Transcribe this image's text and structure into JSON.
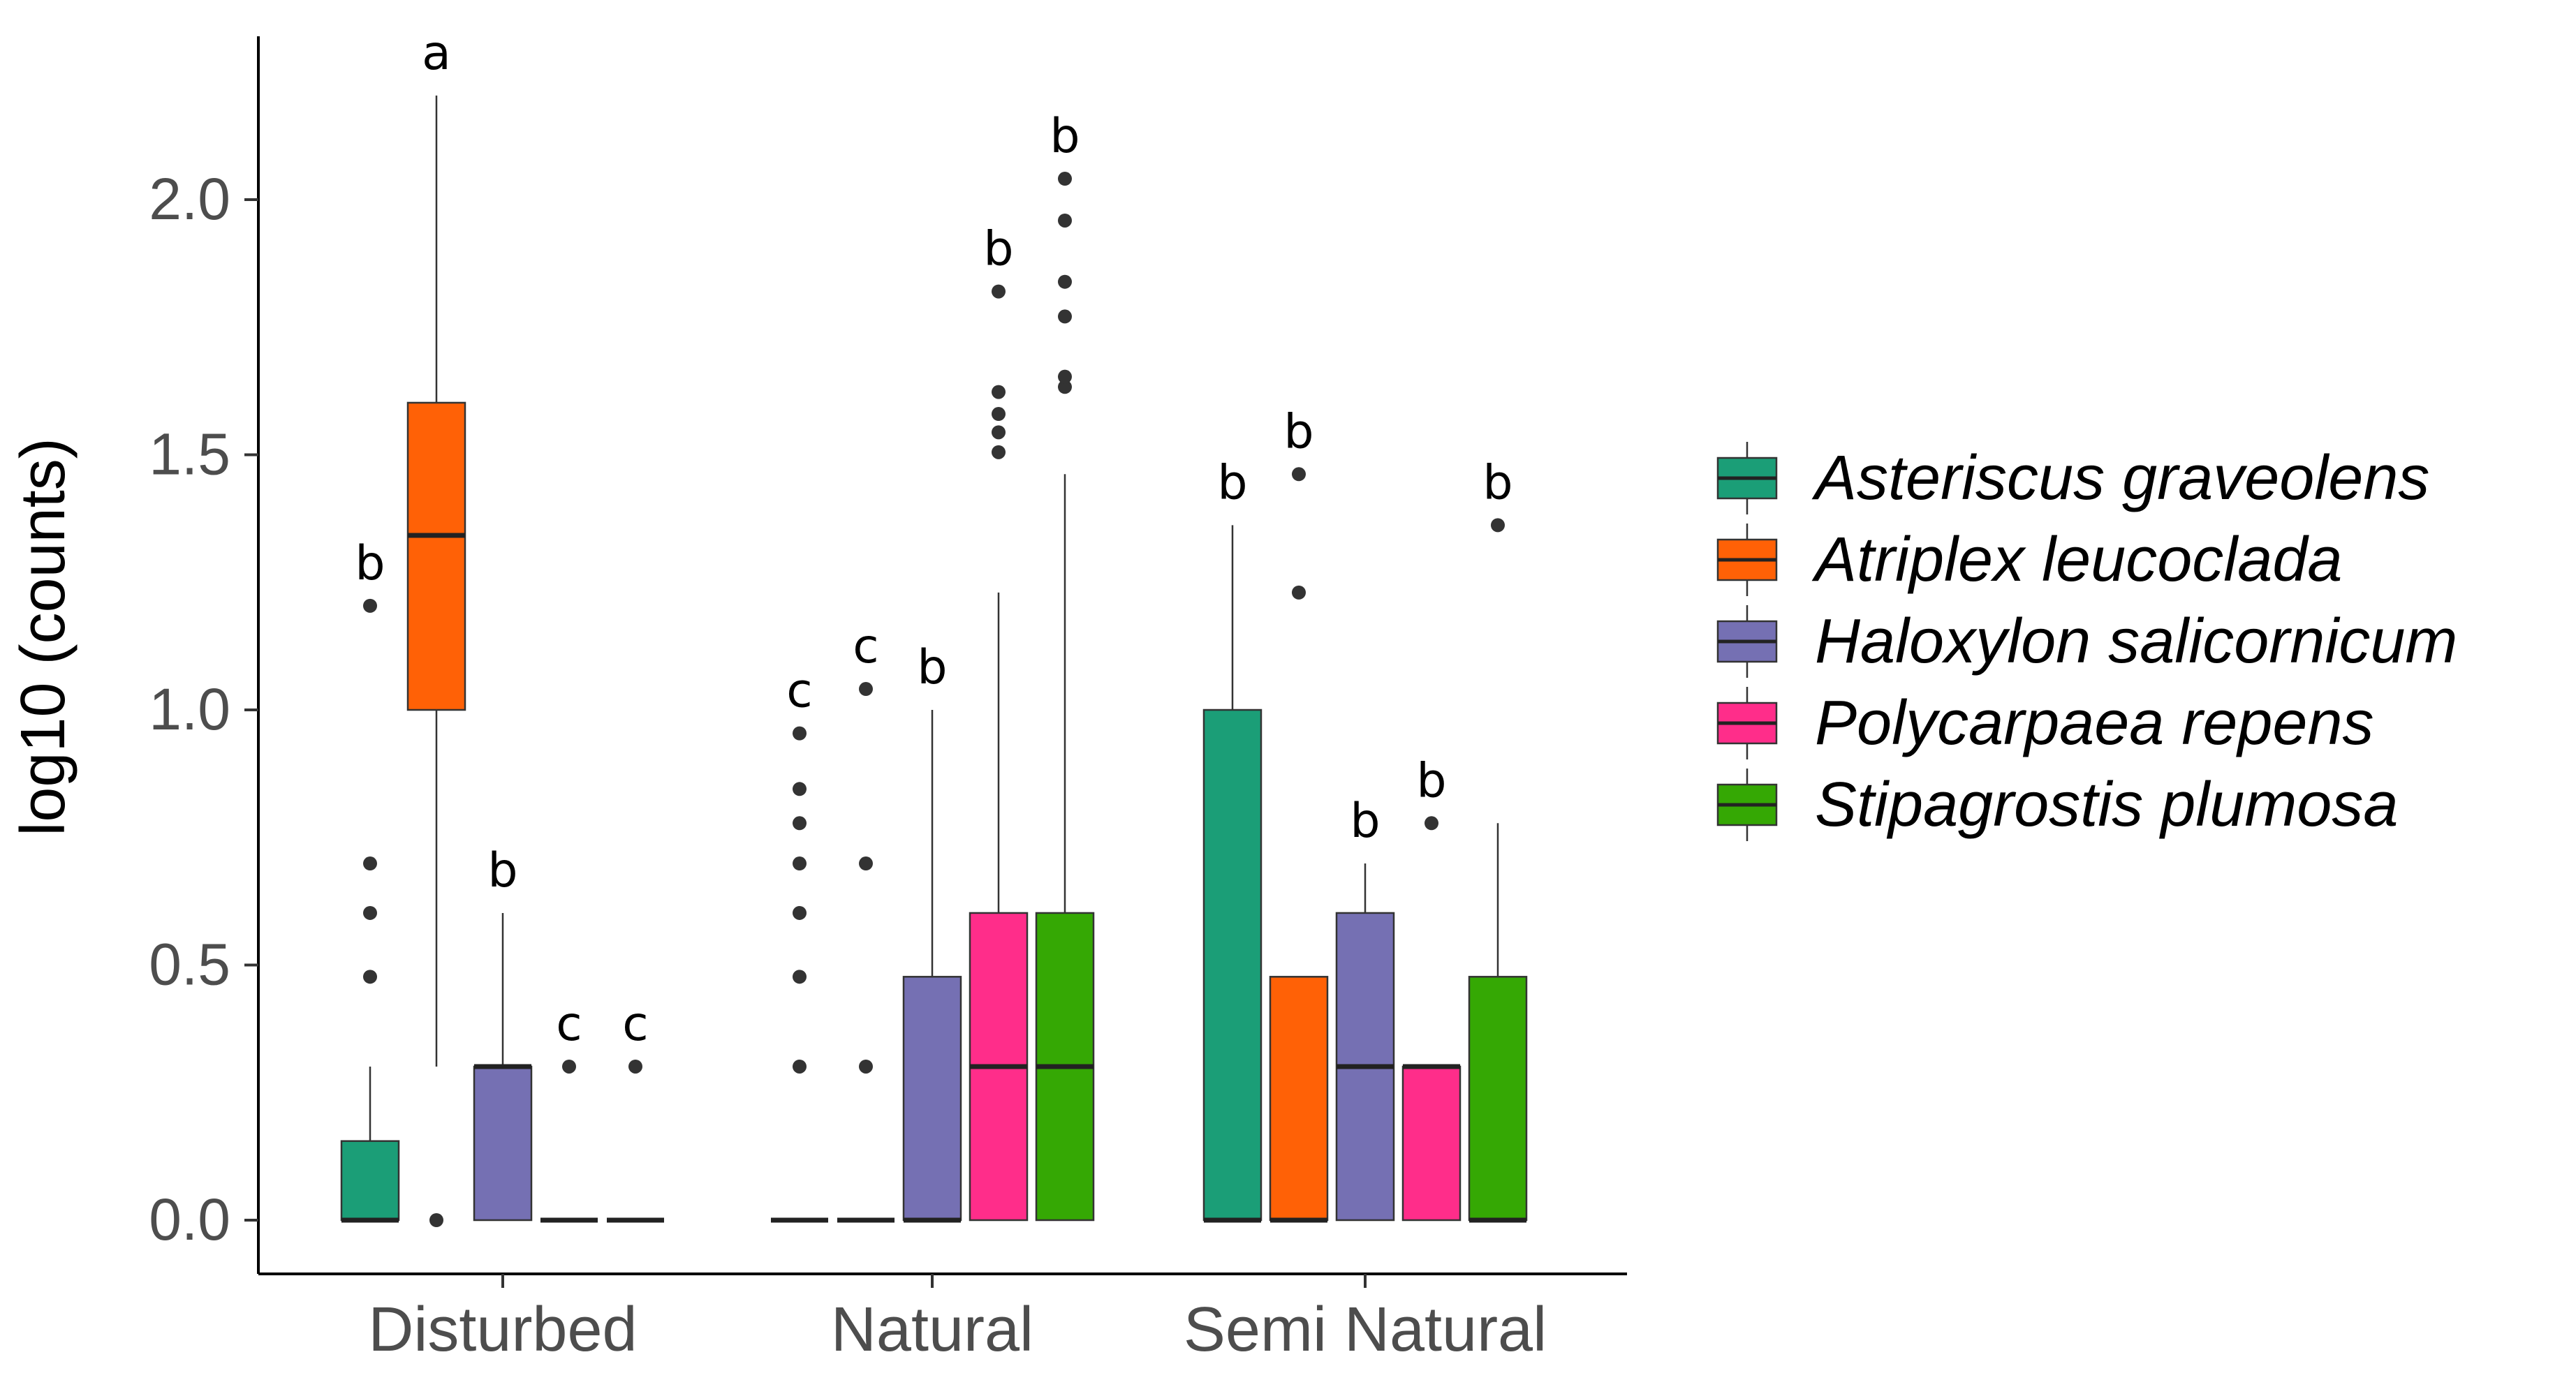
{
  "chart_data": {
    "type": "boxplot",
    "xlabel": "",
    "ylabel": "log10 (counts)",
    "ylim": [
      -0.1,
      2.3
    ],
    "yticks": [
      0.0,
      0.5,
      1.0,
      1.5,
      2.0
    ],
    "ytick_labels": [
      "0.0",
      "0.5",
      "1.0",
      "1.5",
      "2.0"
    ],
    "categories": [
      "Disturbed",
      "Natural",
      "Semi Natural"
    ],
    "legend": {
      "position": "right"
    },
    "series": [
      {
        "name": "Asteriscus graveolens",
        "color": "#1b9e77",
        "boxes": [
          {
            "category": "Disturbed",
            "q1": 0.0,
            "median": 0.0,
            "q3": 0.155,
            "whisker_low": 0.0,
            "whisker_high": 0.301,
            "outliers": [
              0.477,
              0.602,
              0.699,
              1.204
            ],
            "letter": "b"
          },
          {
            "category": "Natural",
            "q1": 0.0,
            "median": 0.0,
            "q3": 0.0,
            "whisker_low": 0.0,
            "whisker_high": 0.0,
            "outliers": [
              0.301,
              0.477,
              0.602,
              0.699,
              0.778,
              0.845,
              0.954
            ],
            "letter": "c"
          },
          {
            "category": "Semi Natural",
            "q1": 0.0,
            "median": 0.0,
            "q3": 1.0,
            "whisker_low": 0.0,
            "whisker_high": 1.362,
            "outliers": [],
            "letter": "b"
          }
        ]
      },
      {
        "name": "Atriplex leucoclada",
        "color": "#ff6106",
        "boxes": [
          {
            "category": "Disturbed",
            "q1": 1.0,
            "median": 1.342,
            "q3": 1.602,
            "whisker_low": 0.301,
            "whisker_high": 2.204,
            "outliers": [
              0.0
            ],
            "letter": "a"
          },
          {
            "category": "Natural",
            "q1": 0.0,
            "median": 0.0,
            "q3": 0.0,
            "whisker_low": 0.0,
            "whisker_high": 0.0,
            "outliers": [
              0.301,
              0.699,
              1.041
            ],
            "letter": "c"
          },
          {
            "category": "Semi Natural",
            "q1": 0.0,
            "median": 0.0,
            "q3": 0.477,
            "whisker_low": 0.0,
            "whisker_high": 0.477,
            "outliers": [
              1.23,
              1.462
            ],
            "letter": "b"
          }
        ]
      },
      {
        "name": "Haloxylon salicornicum",
        "color": "#7570b3",
        "boxes": [
          {
            "category": "Disturbed",
            "q1": 0.0,
            "median": 0.301,
            "q3": 0.301,
            "whisker_low": 0.0,
            "whisker_high": 0.602,
            "outliers": [],
            "letter": "b"
          },
          {
            "category": "Natural",
            "q1": 0.0,
            "median": 0.0,
            "q3": 0.477,
            "whisker_low": 0.0,
            "whisker_high": 1.0,
            "outliers": [],
            "letter": "b"
          },
          {
            "category": "Semi Natural",
            "q1": 0.0,
            "median": 0.301,
            "q3": 0.602,
            "whisker_low": 0.0,
            "whisker_high": 0.699,
            "outliers": [],
            "letter": "b"
          }
        ]
      },
      {
        "name": "Polycarpaea repens",
        "color": "#ff2d8a",
        "boxes": [
          {
            "category": "Disturbed",
            "q1": 0.0,
            "median": 0.0,
            "q3": 0.0,
            "whisker_low": 0.0,
            "whisker_high": 0.0,
            "outliers": [
              0.301
            ],
            "letter": "c"
          },
          {
            "category": "Natural",
            "q1": 0.0,
            "median": 0.301,
            "q3": 0.602,
            "whisker_low": 0.0,
            "whisker_high": 1.23,
            "outliers": [
              1.505,
              1.544,
              1.58,
              1.623,
              1.82
            ],
            "letter": "b"
          },
          {
            "category": "Semi Natural",
            "q1": 0.0,
            "median": 0.301,
            "q3": 0.301,
            "whisker_low": 0.0,
            "whisker_high": 0.301,
            "outliers": [
              0.778
            ],
            "letter": "b"
          }
        ]
      },
      {
        "name": "Stipagrostis plumosa",
        "color": "#35a804",
        "boxes": [
          {
            "category": "Disturbed",
            "q1": 0.0,
            "median": 0.0,
            "q3": 0.0,
            "whisker_low": 0.0,
            "whisker_high": 0.0,
            "outliers": [
              0.301
            ],
            "letter": "c"
          },
          {
            "category": "Natural",
            "q1": 0.0,
            "median": 0.301,
            "q3": 0.602,
            "whisker_low": 0.0,
            "whisker_high": 1.462,
            "outliers": [
              1.633,
              1.653,
              1.771,
              1.839,
              1.959,
              2.041
            ],
            "letter": "b"
          },
          {
            "category": "Semi Natural",
            "q1": 0.0,
            "median": 0.0,
            "q3": 0.477,
            "whisker_low": 0.0,
            "whisker_high": 0.778,
            "outliers": [
              1.362
            ],
            "letter": "b"
          }
        ]
      }
    ]
  }
}
